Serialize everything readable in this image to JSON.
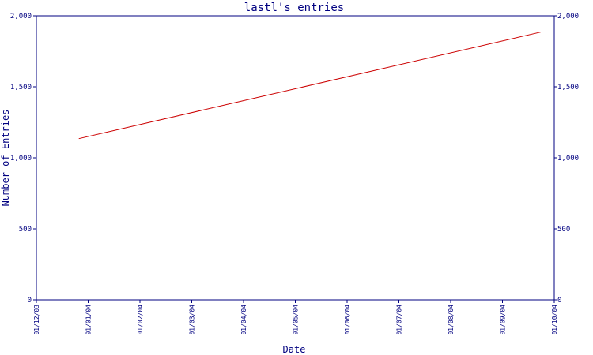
{
  "chart_data": {
    "type": "line",
    "title": "lastl's entries",
    "xlabel": "Date",
    "ylabel": "Number of Entries",
    "x_ticks": [
      "01/12/03",
      "01/01/04",
      "01/02/04",
      "01/03/04",
      "01/04/04",
      "01/05/04",
      "01/06/04",
      "01/07/04",
      "01/08/04",
      "01/09/04",
      "01/10/04"
    ],
    "y_ticks": [
      "0",
      "500",
      "1,000",
      "1,500",
      "2,000"
    ],
    "ylim": [
      0,
      2000
    ],
    "xlim": [
      "2003-12-01",
      "2004-10-01"
    ],
    "series": [
      {
        "points": [
          {
            "x": "2003-12-26",
            "y": 1135
          },
          {
            "x": "2004-09-23",
            "y": 1885
          }
        ]
      }
    ],
    "grid": false,
    "line_color": "#cc0000",
    "axis_color": "#000080"
  }
}
